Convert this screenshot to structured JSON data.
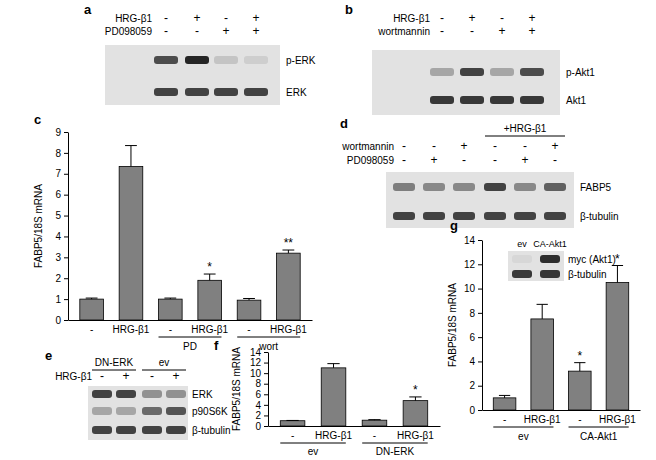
{
  "chart_data": [
    {
      "type": "bar",
      "title": "c",
      "y_label": "FABP5/18S mRNA",
      "categories": [
        "-",
        "HRG-β1",
        "-",
        "HRG-β1",
        "-",
        "HRG-β1"
      ],
      "category_groups": [
        null,
        null,
        "PD",
        "PD",
        "wort",
        "wort"
      ],
      "values": [
        1.0,
        7.35,
        1.0,
        1.9,
        0.95,
        3.2
      ],
      "errors": [
        0.05,
        1.0,
        0.05,
        0.3,
        0.08,
        0.15
      ],
      "annotations": [
        null,
        null,
        null,
        "*",
        null,
        "**"
      ],
      "color": "#808080",
      "ylim": [
        0,
        9
      ],
      "yticks": [
        0,
        1,
        2,
        3,
        4,
        5,
        6,
        7,
        8,
        9
      ]
    },
    {
      "type": "bar",
      "title": "f",
      "y_label": "FABP5/18S mRNA",
      "categories": [
        "-",
        "HRG-β1",
        "-",
        "HRG-β1"
      ],
      "category_groups": [
        "ev",
        "ev",
        "DN-ERK",
        "DN-ERK"
      ],
      "values": [
        1.0,
        11.0,
        1.1,
        4.8
      ],
      "errors": [
        0.05,
        0.8,
        0.1,
        0.7
      ],
      "annotations": [
        null,
        null,
        null,
        "*"
      ],
      "color": "#808080",
      "ylim": [
        0,
        14
      ],
      "yticks": [
        0,
        2,
        4,
        6,
        8,
        10,
        12,
        14
      ]
    },
    {
      "type": "bar",
      "title": "g",
      "y_label": "FABP5/18S mRNA",
      "categories": [
        "-",
        "HRG-β1",
        "-",
        "HRG-β1"
      ],
      "category_groups": [
        "ev",
        "ev",
        "CA-Akt1",
        "CA-Akt1"
      ],
      "values": [
        1.0,
        7.5,
        3.2,
        10.5
      ],
      "errors": [
        0.2,
        1.2,
        0.7,
        1.4
      ],
      "annotations": [
        null,
        null,
        "*",
        "*"
      ],
      "color": "#808080",
      "ylim": [
        0,
        14
      ],
      "yticks": [
        0,
        2,
        4,
        6,
        8,
        10,
        12,
        14
      ],
      "inset": {
        "lanes": [
          "ev",
          "CA-Akt1"
        ],
        "bands": [
          {
            "name": "myc (Akt1)",
            "intensity": [
              0.05,
              0.9
            ]
          },
          {
            "name": "β-tubulin",
            "intensity": [
              0.85,
              0.85
            ]
          }
        ]
      }
    }
  ],
  "blots": [
    {
      "label": "a",
      "treatments": [
        {
          "name": "HRG-β1",
          "lanes": [
            "-",
            "+",
            "-",
            "+"
          ]
        },
        {
          "name": "PD098059",
          "lanes": [
            "-",
            "-",
            "+",
            "+"
          ]
        }
      ],
      "bands": [
        {
          "name": "p-ERK",
          "intensity": [
            0.75,
            0.95,
            0.15,
            0.1
          ]
        },
        {
          "name": "ERK",
          "intensity": [
            0.8,
            0.8,
            0.8,
            0.8
          ]
        }
      ]
    },
    {
      "label": "b",
      "treatments": [
        {
          "name": "HRG-β1",
          "lanes": [
            "-",
            "+",
            "-",
            "+"
          ]
        },
        {
          "name": "wortmannin",
          "lanes": [
            "-",
            "-",
            "+",
            "+"
          ]
        }
      ],
      "bands": [
        {
          "name": "p-Akt1",
          "intensity": [
            0.3,
            0.8,
            0.3,
            0.75
          ]
        },
        {
          "name": "Akt1",
          "intensity": [
            0.85,
            0.85,
            0.85,
            0.85
          ]
        }
      ]
    },
    {
      "label": "d",
      "lane_groups": [
        null,
        null,
        null,
        "+HRG-β1",
        "+HRG-β1",
        "+HRG-β1"
      ],
      "treatments": [
        {
          "name": "wortmannin",
          "lanes": [
            "-",
            "-",
            "+",
            "-",
            "-",
            "+"
          ]
        },
        {
          "name": "PD098059",
          "lanes": [
            "-",
            "+",
            "-",
            "-",
            "+",
            "-"
          ]
        }
      ],
      "bands": [
        {
          "name": "FABP5",
          "intensity": [
            0.5,
            0.45,
            0.45,
            0.8,
            0.45,
            0.65
          ]
        },
        {
          "name": "β-tubulin",
          "intensity": [
            0.8,
            0.8,
            0.8,
            0.8,
            0.8,
            0.8
          ]
        }
      ]
    },
    {
      "label": "e",
      "lane_groups": [
        "DN-ERK",
        "DN-ERK",
        "ev",
        "ev"
      ],
      "treatments": [
        {
          "name": "HRG-β1",
          "lanes": [
            "-",
            "+",
            "-",
            "+"
          ]
        }
      ],
      "bands": [
        {
          "name": "ERK",
          "intensity": [
            0.8,
            0.8,
            0.4,
            0.4
          ]
        },
        {
          "name": "p90S6K",
          "intensity": [
            0.3,
            0.3,
            0.6,
            0.7
          ]
        },
        {
          "name": "β-tubulin",
          "intensity": [
            0.8,
            0.8,
            0.8,
            0.8
          ]
        }
      ]
    }
  ]
}
